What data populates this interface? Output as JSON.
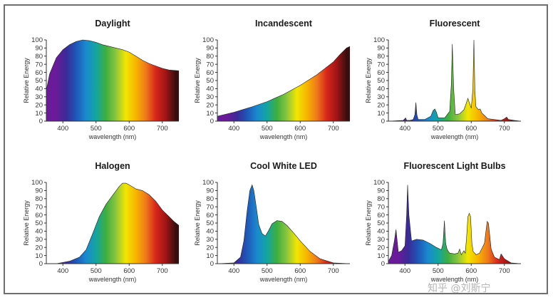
{
  "spectrum_colors": [
    "#6a1b9a",
    "#3a2a98",
    "#1f57b8",
    "#1a8ad0",
    "#14a5a0",
    "#3fae3f",
    "#8cc63f",
    "#f2e600",
    "#f7b500",
    "#ee7a1c",
    "#d8261c",
    "#a11515",
    "#3a0e0e"
  ],
  "watermark": "知乎 @刘斯宁",
  "chart_data": [
    {
      "type": "area",
      "title": "Daylight",
      "xlabel": "wavelength (nm)",
      "ylabel": "Relative Energy",
      "xlim": [
        350,
        750
      ],
      "ylim": [
        0,
        100
      ],
      "xticks": [
        400,
        500,
        600,
        700
      ],
      "yticks": [
        0,
        10,
        20,
        30,
        40,
        50,
        60,
        70,
        80,
        90,
        100
      ],
      "x": [
        350,
        360,
        380,
        400,
        420,
        440,
        460,
        480,
        500,
        520,
        540,
        560,
        580,
        600,
        620,
        640,
        660,
        680,
        700,
        720,
        750
      ],
      "values": [
        38,
        58,
        78,
        88,
        94,
        98,
        100,
        99,
        97,
        94,
        92,
        90,
        88,
        85,
        80,
        75,
        71,
        68,
        65,
        63,
        62
      ]
    },
    {
      "type": "area",
      "title": "Incandescent",
      "xlabel": "wavelength (nm)",
      "ylabel": "Relative Energy",
      "xlim": [
        350,
        750
      ],
      "ylim": [
        0,
        100
      ],
      "xticks": [
        400,
        500,
        600,
        700
      ],
      "yticks": [
        0,
        10,
        20,
        30,
        40,
        50,
        60,
        70,
        80,
        90,
        100
      ],
      "x": [
        350,
        400,
        450,
        500,
        550,
        600,
        650,
        700,
        720,
        740,
        750
      ],
      "values": [
        6,
        11,
        17,
        24,
        33,
        44,
        57,
        73,
        82,
        90,
        92
      ]
    },
    {
      "type": "area",
      "title": "Fluorescent",
      "xlabel": "wavelength (nm)",
      "ylabel": "Relative Energy",
      "xlim": [
        350,
        750
      ],
      "ylim": [
        0,
        100
      ],
      "xticks": [
        400,
        500,
        600,
        700
      ],
      "yticks": [
        0,
        10,
        20,
        30,
        40,
        50,
        60,
        70,
        80,
        90,
        100
      ],
      "x": [
        350,
        395,
        402,
        405,
        408,
        415,
        425,
        430,
        433,
        436,
        440,
        460,
        478,
        485,
        490,
        495,
        500,
        520,
        535,
        540,
        543,
        547,
        552,
        565,
        578,
        585,
        590,
        595,
        600,
        605,
        608,
        611,
        614,
        618,
        622,
        627,
        632,
        640,
        650,
        690,
        700,
        707,
        712,
        730,
        750
      ],
      "values": [
        0,
        1,
        4,
        1,
        1,
        1,
        2,
        8,
        23,
        8,
        2,
        2,
        6,
        13,
        15,
        11,
        4,
        4,
        12,
        45,
        95,
        40,
        8,
        9,
        14,
        22,
        28,
        22,
        16,
        40,
        100,
        38,
        18,
        16,
        14,
        15,
        10,
        7,
        3,
        1,
        3,
        5,
        2,
        1,
        0
      ]
    },
    {
      "type": "area",
      "title": "Halogen",
      "xlabel": "wavelength (nm)",
      "ylabel": "Relative Energy",
      "xlim": [
        350,
        750
      ],
      "ylim": [
        0,
        100
      ],
      "xticks": [
        400,
        500,
        600,
        700
      ],
      "yticks": [
        0,
        10,
        20,
        30,
        40,
        50,
        60,
        70,
        80,
        90,
        100
      ],
      "x": [
        350,
        380,
        420,
        450,
        470,
        490,
        510,
        530,
        550,
        570,
        580,
        590,
        600,
        620,
        640,
        660,
        680,
        700,
        720,
        735,
        750
      ],
      "values": [
        0,
        0,
        3,
        8,
        17,
        37,
        58,
        73,
        84,
        95,
        99,
        99,
        97,
        92,
        90,
        85,
        77,
        66,
        58,
        52,
        47
      ]
    },
    {
      "type": "area",
      "title": "Cool White LED",
      "xlabel": "wavelength (nm)",
      "ylabel": "Relative Energy",
      "xlim": [
        350,
        750
      ],
      "ylim": [
        0,
        100
      ],
      "xticks": [
        400,
        500,
        600,
        700
      ],
      "yticks": [
        0,
        10,
        20,
        30,
        40,
        50,
        60,
        70,
        80,
        90,
        100
      ],
      "x": [
        350,
        400,
        420,
        430,
        440,
        448,
        455,
        460,
        468,
        475,
        485,
        495,
        505,
        515,
        530,
        545,
        560,
        580,
        600,
        630,
        660,
        700,
        750
      ],
      "values": [
        0,
        1,
        8,
        28,
        65,
        90,
        97,
        90,
        68,
        48,
        37,
        34,
        41,
        49,
        53,
        52,
        47,
        38,
        28,
        15,
        6,
        1,
        0
      ]
    },
    {
      "type": "area",
      "title": "Fluorescent Light Bulbs",
      "xlabel": "wavelength (nm)",
      "ylabel": "Relative Energy",
      "xlim": [
        350,
        750
      ],
      "ylim": [
        0,
        100
      ],
      "xticks": [
        400,
        500,
        600,
        700
      ],
      "yticks": [
        0,
        10,
        20,
        30,
        40,
        50,
        60,
        70,
        80,
        90,
        100
      ],
      "x": [
        350,
        360,
        368,
        373,
        376,
        380,
        390,
        400,
        405,
        408,
        412,
        420,
        435,
        455,
        475,
        495,
        510,
        515,
        519,
        523,
        527,
        531,
        535,
        550,
        560,
        565,
        570,
        578,
        582,
        586,
        590,
        594,
        598,
        602,
        606,
        615,
        625,
        640,
        648,
        652,
        660,
        670,
        685,
        690,
        700,
        720,
        750
      ],
      "values": [
        3,
        10,
        28,
        42,
        30,
        14,
        16,
        22,
        60,
        97,
        60,
        28,
        30,
        29,
        25,
        20,
        17,
        25,
        53,
        25,
        18,
        15,
        13,
        12,
        13,
        18,
        11,
        16,
        13,
        32,
        58,
        62,
        58,
        25,
        15,
        11,
        13,
        25,
        52,
        50,
        18,
        8,
        5,
        12,
        6,
        1,
        0
      ]
    }
  ]
}
